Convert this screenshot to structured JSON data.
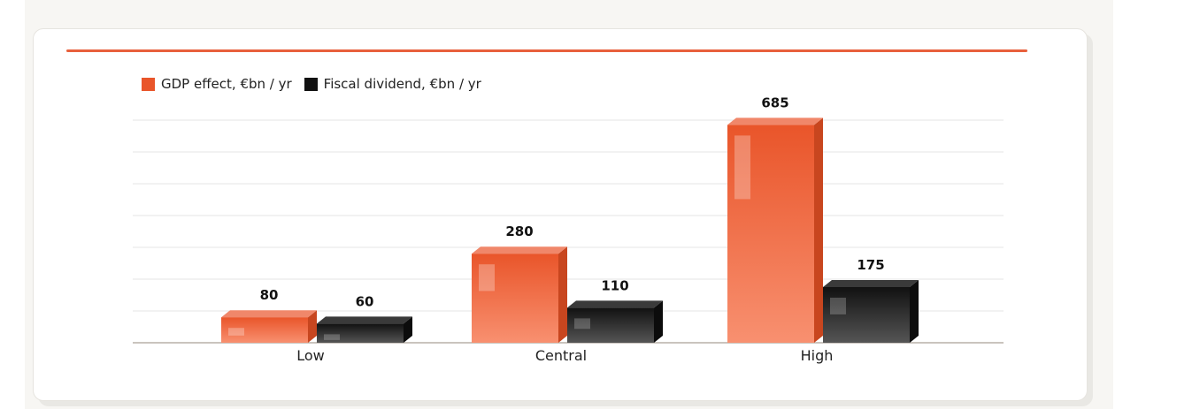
{
  "colors": {
    "accent": "#e8603c",
    "gdp_front_top": "#e9552a",
    "gdp_front_bottom": "#f89070",
    "gdp_side": "#c8461f",
    "gdp_top": "#f0876a",
    "fiscal_front_top": "#111111",
    "fiscal_front_bottom": "#555555",
    "fiscal_side": "#0c0c0c",
    "fiscal_top": "#3a3a3a",
    "grid": "#e4e4e4",
    "axis": "#b8b0a8"
  },
  "chart_data": {
    "type": "bar",
    "categories": [
      "Low",
      "Central",
      "High"
    ],
    "series": [
      {
        "name": "GDP effect, €bn / yr",
        "values": [
          80,
          280,
          685
        ],
        "labels": [
          "80",
          "280",
          "685"
        ]
      },
      {
        "name": "Fiscal dividend, €bn / yr",
        "values": [
          60,
          110,
          175
        ],
        "labels": [
          "60",
          "110",
          "175"
        ]
      }
    ],
    "ylim": [
      0,
      700
    ],
    "grid": true,
    "legend_position": "top-left",
    "style": "3d-bars"
  }
}
